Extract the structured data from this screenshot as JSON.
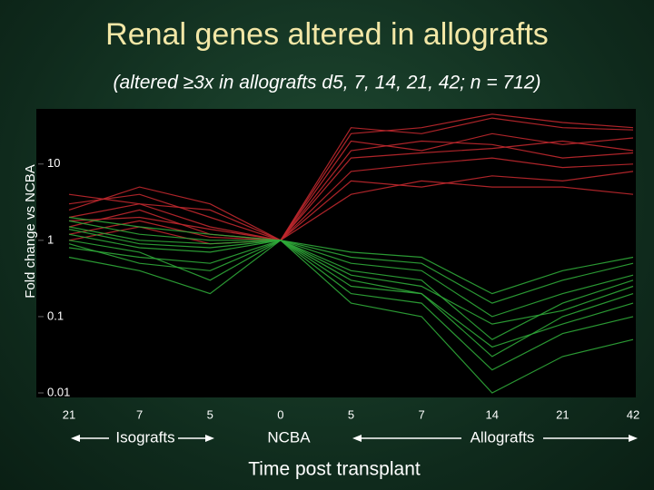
{
  "chart_data": {
    "type": "line",
    "title": "Renal genes altered in allografts",
    "subtitle": "(altered ≥3x in allografts d5, 7, 14, 21, 42; n = 712)",
    "y_label": "Fold change vs NCBA",
    "x_label": "Time post transplant",
    "group_labels": [
      "Isografts",
      "NCBA",
      "Allografts"
    ],
    "categories": [
      "21",
      "7",
      "5",
      "0",
      "5",
      "7",
      "14",
      "21",
      "42"
    ],
    "log_y": true,
    "ylim": [
      0.01,
      50
    ],
    "yticks": [
      0.01,
      0.1,
      1,
      10
    ],
    "series": [
      {
        "color": "#c0282d",
        "values": [
          2,
          3,
          1.5,
          1,
          20,
          15,
          25,
          18,
          22
        ]
      },
      {
        "color": "#c0282d",
        "values": [
          1.5,
          2.5,
          1.2,
          1,
          30,
          25,
          40,
          30,
          28
        ]
      },
      {
        "color": "#c0282d",
        "values": [
          3,
          4,
          2,
          1,
          8,
          10,
          12,
          9,
          10
        ]
      },
      {
        "color": "#c0282d",
        "values": [
          1.2,
          1.8,
          1.1,
          1,
          12,
          14,
          16,
          20,
          15
        ]
      },
      {
        "color": "#c0282d",
        "values": [
          2.5,
          5,
          3,
          1,
          6,
          5,
          7,
          6,
          8
        ]
      },
      {
        "color": "#c0282d",
        "values": [
          1.8,
          2,
          1.4,
          1,
          15,
          20,
          18,
          12,
          14
        ]
      },
      {
        "color": "#c0282d",
        "values": [
          1,
          1.5,
          0.9,
          1,
          4,
          6,
          5,
          5,
          4
        ]
      },
      {
        "color": "#c0282d",
        "values": [
          4,
          3,
          2.5,
          1,
          25,
          30,
          45,
          35,
          30
        ]
      },
      {
        "color": "#2fa838",
        "values": [
          1.5,
          1,
          0.9,
          1,
          0.4,
          0.3,
          0.05,
          0.15,
          0.3
        ]
      },
      {
        "color": "#2fa838",
        "values": [
          1.2,
          0.8,
          0.7,
          1,
          0.3,
          0.2,
          0.03,
          0.1,
          0.2
        ]
      },
      {
        "color": "#2fa838",
        "values": [
          1.8,
          1.2,
          1,
          1,
          0.5,
          0.4,
          0.1,
          0.2,
          0.35
        ]
      },
      {
        "color": "#2fa838",
        "values": [
          0.8,
          0.6,
          0.5,
          1,
          0.2,
          0.15,
          0.02,
          0.06,
          0.1
        ]
      },
      {
        "color": "#2fa838",
        "values": [
          1,
          0.7,
          0.3,
          1,
          0.6,
          0.5,
          0.15,
          0.3,
          0.5
        ]
      },
      {
        "color": "#2fa838",
        "values": [
          1.4,
          0.9,
          0.8,
          1,
          0.25,
          0.2,
          0.04,
          0.08,
          0.15
        ]
      },
      {
        "color": "#2fa838",
        "values": [
          0.6,
          0.4,
          0.2,
          1,
          0.35,
          0.25,
          0.08,
          0.12,
          0.25
        ]
      },
      {
        "color": "#2fa838",
        "values": [
          2,
          1.5,
          1.2,
          1,
          0.7,
          0.6,
          0.2,
          0.4,
          0.6
        ]
      },
      {
        "color": "#2fa838",
        "values": [
          0.9,
          0.5,
          0.4,
          1,
          0.15,
          0.1,
          0.01,
          0.03,
          0.05
        ]
      }
    ]
  }
}
